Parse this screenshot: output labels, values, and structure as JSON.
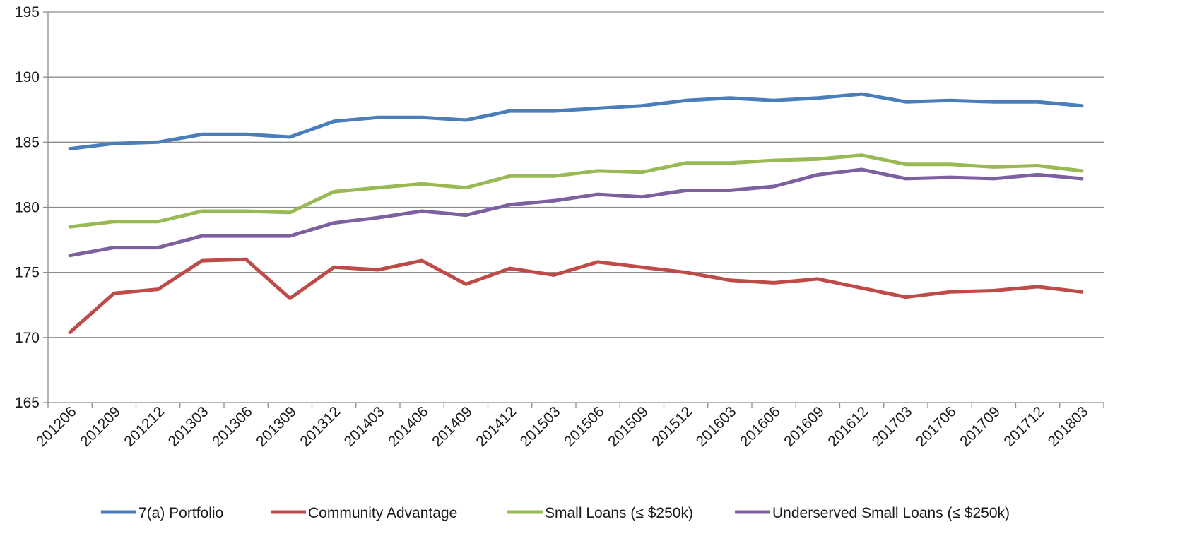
{
  "chart_data": {
    "type": "line",
    "title": "",
    "xlabel": "",
    "ylabel": "",
    "ylim": [
      165,
      195
    ],
    "yticks": [
      165,
      170,
      175,
      180,
      185,
      190,
      195
    ],
    "grid": true,
    "legend_position": "bottom",
    "categories": [
      "201206",
      "201209",
      "201212",
      "201303",
      "201306",
      "201309",
      "201312",
      "201403",
      "201406",
      "201409",
      "201412",
      "201503",
      "201506",
      "201509",
      "201512",
      "201603",
      "201606",
      "201609",
      "201612",
      "201703",
      "201706",
      "201709",
      "201712",
      "201803"
    ],
    "series": [
      {
        "name": "7(a) Portfolio",
        "color": "#4a7ebb",
        "values": [
          184.5,
          184.9,
          185.0,
          185.6,
          185.6,
          185.4,
          186.6,
          186.9,
          186.9,
          186.7,
          187.4,
          187.4,
          187.6,
          187.8,
          188.2,
          188.4,
          188.2,
          188.4,
          188.7,
          188.1,
          188.2,
          188.1,
          188.1,
          187.8
        ]
      },
      {
        "name": "Community Advantage",
        "color": "#be4b48",
        "values": [
          170.4,
          173.4,
          173.7,
          175.9,
          176.0,
          173.0,
          175.4,
          175.2,
          175.9,
          174.1,
          175.3,
          174.8,
          175.8,
          175.4,
          175.0,
          174.4,
          174.2,
          174.5,
          173.8,
          173.1,
          173.5,
          173.6,
          173.9,
          173.5
        ]
      },
      {
        "name": "Small Loans (≤ $250k)",
        "color": "#98b954",
        "values": [
          178.5,
          178.9,
          178.9,
          179.7,
          179.7,
          179.6,
          181.2,
          181.5,
          181.8,
          181.5,
          182.4,
          182.4,
          182.8,
          182.7,
          183.4,
          183.4,
          183.6,
          183.7,
          184.0,
          183.3,
          183.3,
          183.1,
          183.2,
          182.8
        ]
      },
      {
        "name": "Underserved Small Loans (≤ $250k)",
        "color": "#7d60a0",
        "values": [
          176.3,
          176.9,
          176.9,
          177.8,
          177.8,
          177.8,
          178.8,
          179.2,
          179.7,
          179.4,
          180.2,
          180.5,
          181.0,
          180.8,
          181.3,
          181.3,
          181.6,
          182.5,
          182.9,
          182.2,
          182.3,
          182.2,
          182.5,
          182.2
        ]
      }
    ]
  }
}
